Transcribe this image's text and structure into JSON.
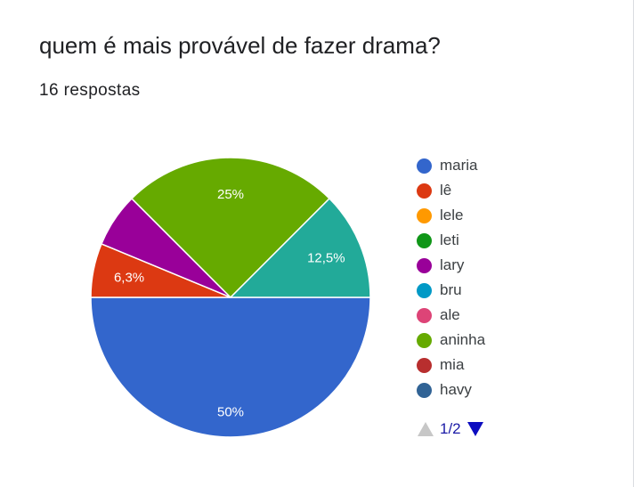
{
  "title": "quem é mais provável de fazer drama?",
  "subtitle": "16 respostas",
  "chart_data": {
    "type": "pie",
    "title": "quem é mais provável de fazer drama?",
    "total_responses": 16,
    "legend_position": "right",
    "slices": [
      {
        "name": "maria",
        "value": 50,
        "label": "50%",
        "color": "#3366cc"
      },
      {
        "name": "lê",
        "value": 6.25,
        "label": "6,3%",
        "color": "#dc3912"
      },
      {
        "name": "lele",
        "value": 0,
        "label": "",
        "color": "#ff9900"
      },
      {
        "name": "leti",
        "value": 0,
        "label": "",
        "color": "#109618"
      },
      {
        "name": "lary",
        "value": 6.25,
        "label": "",
        "color": "#990099"
      },
      {
        "name": "bru",
        "value": 0,
        "label": "",
        "color": "#0099c6"
      },
      {
        "name": "ale",
        "value": 0,
        "label": "",
        "color": "#dd4477"
      },
      {
        "name": "aninha",
        "value": 25,
        "label": "25%",
        "color": "#66aa00"
      },
      {
        "name": "mia",
        "value": 0,
        "label": "",
        "color": "#b82e2e"
      },
      {
        "name": "havy",
        "value": 0,
        "label": "",
        "color": "#316395"
      },
      {
        "name": "",
        "value": 12.5,
        "label": "12,5%",
        "color": "#22aa99"
      }
    ]
  },
  "legend": {
    "items": [
      {
        "label": "maria",
        "color": "#3366cc"
      },
      {
        "label": "lê",
        "color": "#dc3912"
      },
      {
        "label": "lele",
        "color": "#ff9900"
      },
      {
        "label": "leti",
        "color": "#109618"
      },
      {
        "label": "lary",
        "color": "#990099"
      },
      {
        "label": "bru",
        "color": "#0099c6"
      },
      {
        "label": "ale",
        "color": "#dd4477"
      },
      {
        "label": "aninha",
        "color": "#66aa00"
      },
      {
        "label": "mia",
        "color": "#b82e2e"
      },
      {
        "label": "havy",
        "color": "#316395"
      }
    ],
    "pager": {
      "text": "1/2",
      "prev_icon": "triangle-up-icon",
      "next_icon": "triangle-down-icon"
    }
  }
}
